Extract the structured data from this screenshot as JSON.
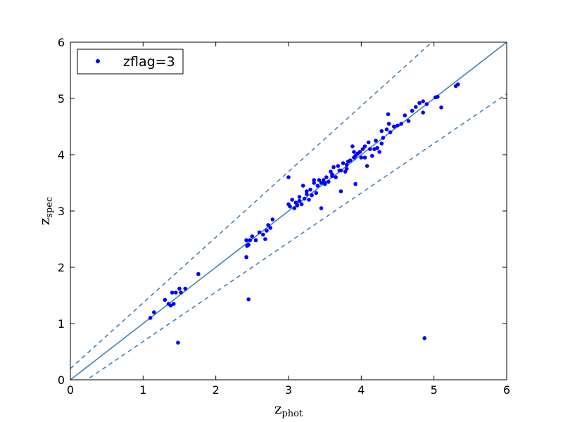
{
  "chart_data": {
    "type": "scatter",
    "title": "",
    "xlabel": "z",
    "xlabel_sub": "phot",
    "ylabel": "z",
    "ylabel_sub": "spec",
    "xlim": [
      0,
      6
    ],
    "ylim": [
      0,
      6
    ],
    "xticks": [
      "0",
      "1",
      "2",
      "3",
      "4",
      "5",
      "6"
    ],
    "yticks": [
      "0",
      "1",
      "2",
      "3",
      "4",
      "5",
      "6"
    ],
    "grid": false,
    "legend_position": "top-left",
    "point_color": "#0000ff",
    "line_color": "#4682b4",
    "reference_lines": [
      {
        "style": "solid",
        "points": [
          [
            0,
            0
          ],
          [
            6,
            6
          ]
        ]
      },
      {
        "style": "dashed",
        "points": [
          [
            0,
            0.2
          ],
          [
            6,
            7.2
          ]
        ]
      },
      {
        "style": "dashed",
        "points": [
          [
            0,
            -0.2
          ],
          [
            6,
            5.08
          ]
        ]
      }
    ],
    "series": [
      {
        "name": "zflag=3",
        "x": [
          1.1,
          1.15,
          1.3,
          1.35,
          1.38,
          1.4,
          1.42,
          1.45,
          1.5,
          1.52,
          1.58,
          1.48,
          1.76,
          2.42,
          2.43,
          2.45,
          2.47,
          2.5,
          2.55,
          2.6,
          2.65,
          2.68,
          2.7,
          2.72,
          2.75,
          2.78,
          2.45,
          2.42,
          3.0,
          3.02,
          3.05,
          3.08,
          3.1,
          3.12,
          3.15,
          3.18,
          3.2,
          3.22,
          3.25,
          3.28,
          3.3,
          3.32,
          3.35,
          3.38,
          3.4,
          3.42,
          3.45,
          3.48,
          3.5,
          3.52,
          3.55,
          3.58,
          3.6,
          3.62,
          3.65,
          3.68,
          3.7,
          3.72,
          3.75,
          3.78,
          3.8,
          3.82,
          3.85,
          3.88,
          3.9,
          3.92,
          3.95,
          3.98,
          4.0,
          4.02,
          4.05,
          4.08,
          4.1,
          4.12,
          4.15,
          4.18,
          4.2,
          4.22,
          4.25,
          4.28,
          4.3,
          4.35,
          4.38,
          4.4,
          4.45,
          4.5,
          4.55,
          4.6,
          4.65,
          4.7,
          4.75,
          4.8,
          4.85,
          4.9,
          5.02,
          5.05,
          5.1,
          5.3,
          5.33,
          4.87,
          3.92,
          3.72,
          3.45,
          3.0,
          4.37,
          4.85,
          3.5,
          3.8,
          3.25,
          3.15,
          3.9,
          4.05,
          3.35,
          3.6,
          4.28
        ],
        "y": [
          1.1,
          1.2,
          1.42,
          1.35,
          1.32,
          1.55,
          1.35,
          1.55,
          1.62,
          1.55,
          1.62,
          0.66,
          1.88,
          2.48,
          2.38,
          2.4,
          2.48,
          2.55,
          2.48,
          2.62,
          2.58,
          2.5,
          2.65,
          2.75,
          2.7,
          2.85,
          1.43,
          2.18,
          3.12,
          3.08,
          3.2,
          3.05,
          3.15,
          3.1,
          3.25,
          3.12,
          3.45,
          3.22,
          3.35,
          3.2,
          3.38,
          3.28,
          3.5,
          3.32,
          3.45,
          3.55,
          3.05,
          3.55,
          3.48,
          3.6,
          3.52,
          3.7,
          3.65,
          3.78,
          3.6,
          3.8,
          3.72,
          3.35,
          3.85,
          3.7,
          3.75,
          3.88,
          3.9,
          4.15,
          3.95,
          3.98,
          4.02,
          4.05,
          3.95,
          4.1,
          4.15,
          3.8,
          4.22,
          4.1,
          3.98,
          4.1,
          4.25,
          4.12,
          4.05,
          4.42,
          4.3,
          4.45,
          4.55,
          4.4,
          4.5,
          4.52,
          4.55,
          4.7,
          4.6,
          4.78,
          4.85,
          4.92,
          4.75,
          4.9,
          5.02,
          5.03,
          4.84,
          5.22,
          5.25,
          0.74,
          3.48,
          3.72,
          3.5,
          3.6,
          4.72,
          4.95,
          3.5,
          3.82,
          3.3,
          3.18,
          4.05,
          3.95,
          3.55,
          3.62,
          4.2
        ]
      }
    ]
  }
}
